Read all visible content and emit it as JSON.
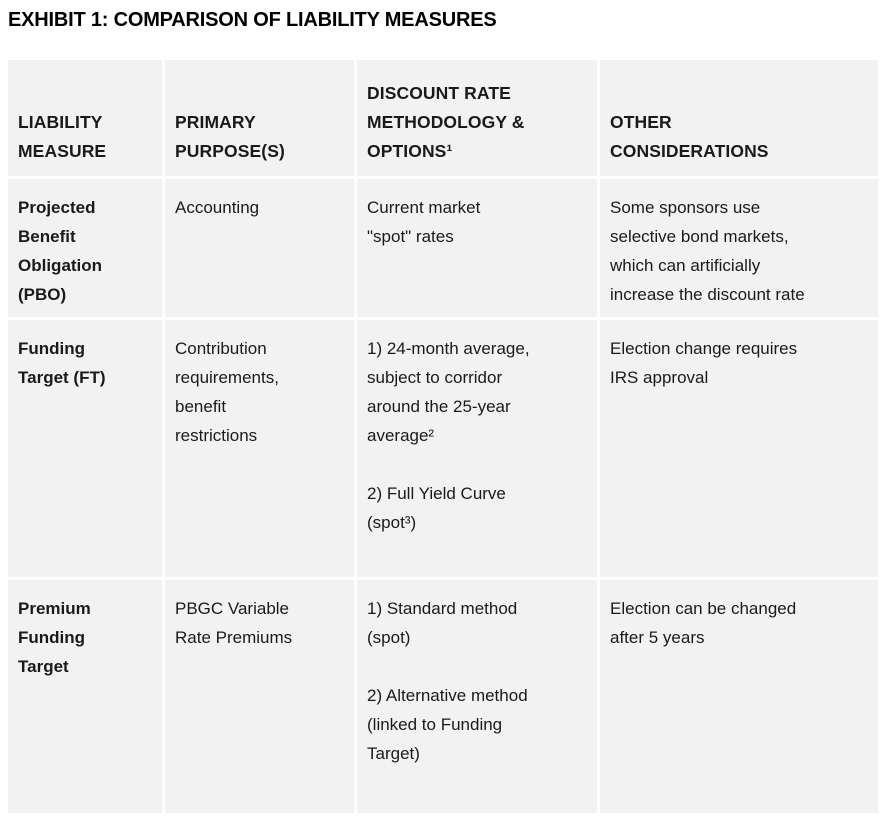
{
  "title": "EXHIBIT 1: COMPARISON OF LIABILITY MEASURES",
  "colors": {
    "page_background": "#ffffff",
    "cell_background": "#f2f2f2",
    "text": "#1a1a1a",
    "title_text": "#000000"
  },
  "table": {
    "columns": [
      {
        "label": "LIABILITY\nMEASURE"
      },
      {
        "label": "PRIMARY\nPURPOSE(S)"
      },
      {
        "label": "DISCOUNT RATE\nMETHODOLOGY &\nOPTIONS¹"
      },
      {
        "label": "OTHER\nCONSIDERATIONS"
      }
    ],
    "rows": [
      {
        "measure": "Projected\nBenefit\nObligation\n(PBO)",
        "purpose": "Accounting",
        "methodology": "Current market\n\"spot\" rates",
        "considerations": "Some sponsors use\nselective bond markets,\nwhich can artificially\nincrease the discount rate"
      },
      {
        "measure": "Funding\nTarget (FT)",
        "purpose": "Contribution\nrequirements,\nbenefit\nrestrictions",
        "methodology": "1) 24-month average,\nsubject to corridor\naround the 25-year\naverage²\n\n2) Full Yield Curve\n(spot³)",
        "considerations": "Election change requires\nIRS approval"
      },
      {
        "measure": "Premium\nFunding\nTarget",
        "purpose": "PBGC Variable\nRate Premiums",
        "methodology": "1) Standard method\n(spot)\n\n2) Alternative method\n(linked to Funding\nTarget)",
        "considerations": "Election can be changed\nafter 5 years"
      }
    ]
  }
}
